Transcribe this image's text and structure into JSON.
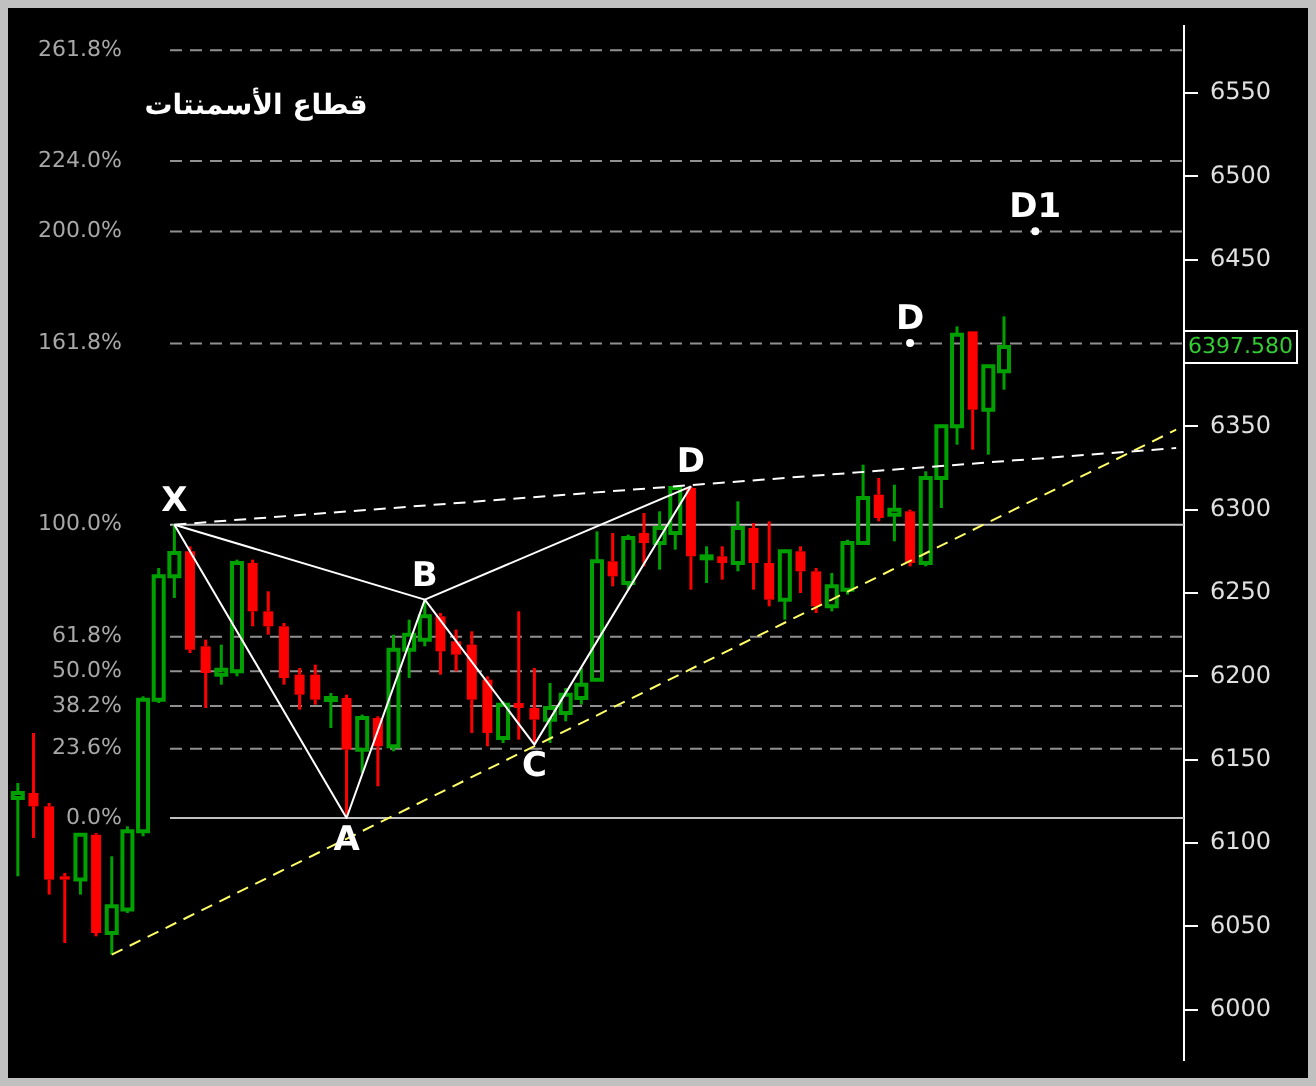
{
  "chart_data": {
    "type": "candlestick",
    "title": "قطاع الأسمنتات",
    "categories": [
      null,
      null,
      null,
      null,
      null,
      null,
      null,
      null,
      null,
      null,
      null,
      null,
      null,
      null,
      null,
      null,
      null,
      null,
      null,
      null,
      null,
      null,
      null,
      null,
      null,
      null,
      null,
      null,
      null,
      null,
      null,
      null,
      null,
      null,
      null,
      null,
      null,
      null,
      null,
      null,
      null,
      null,
      null,
      null,
      null,
      null,
      null,
      null,
      null,
      null,
      null,
      null,
      null,
      null,
      null,
      null,
      null,
      null,
      null,
      null,
      null,
      null,
      null,
      null,
      null,
      null,
      null,
      null,
      null,
      null,
      null,
      null,
      null,
      null,
      null
    ],
    "ohlc": [
      [
        6127,
        6136,
        6080,
        6130
      ],
      [
        6130,
        6166,
        6103,
        6122
      ],
      [
        6122,
        6124,
        6069,
        6078
      ],
      [
        6080,
        6082,
        6040,
        6078
      ],
      [
        6078,
        6105,
        6069,
        6105
      ],
      [
        6105,
        6106,
        6044,
        6046
      ],
      [
        6046,
        6092,
        6033,
        6062
      ],
      [
        6060,
        6110,
        6058,
        6107
      ],
      [
        6107,
        6188,
        6104,
        6186
      ],
      [
        6186,
        6265,
        6184,
        6260
      ],
      [
        6260,
        6291,
        6247,
        6274
      ],
      [
        6275,
        6278,
        6214,
        6216
      ],
      [
        6218,
        6222,
        6181,
        6202
      ],
      [
        6201,
        6219,
        6195,
        6204
      ],
      [
        6203,
        6270,
        6200,
        6268
      ],
      [
        6268,
        6270,
        6230,
        6239
      ],
      [
        6239,
        6251,
        6225,
        6230
      ],
      [
        6230,
        6232,
        6195,
        6199
      ],
      [
        6201,
        6205,
        6180,
        6189
      ],
      [
        6201,
        6207,
        6183,
        6186
      ],
      [
        6186,
        6190,
        6169,
        6187
      ],
      [
        6187,
        6189,
        6115,
        6156
      ],
      [
        6156,
        6177,
        6142,
        6175
      ],
      [
        6175,
        6176,
        6134,
        6158
      ],
      [
        6158,
        6225,
        6155,
        6216
      ],
      [
        6216,
        6234,
        6199,
        6225
      ],
      [
        6222,
        6246,
        6218,
        6236
      ],
      [
        6236,
        6238,
        6201,
        6215
      ],
      [
        6221,
        6228,
        6203,
        6213
      ],
      [
        6219,
        6227,
        6166,
        6186
      ],
      [
        6198,
        6200,
        6158,
        6166
      ],
      [
        6163,
        6185,
        6160,
        6183
      ],
      [
        6184,
        6239,
        6162,
        6181
      ],
      [
        6181,
        6205,
        6159,
        6174
      ],
      [
        6174,
        6196,
        6160,
        6181
      ],
      [
        6178,
        6193,
        6173,
        6189
      ],
      [
        6187,
        6205,
        6183,
        6195
      ],
      [
        6198,
        6287,
        6197,
        6269
      ],
      [
        6269,
        6286,
        6254,
        6260
      ],
      [
        6256,
        6285,
        6252,
        6283
      ],
      [
        6286,
        6298,
        6266,
        6280
      ],
      [
        6280,
        6299,
        6264,
        6289
      ],
      [
        6286,
        6314,
        6276,
        6313
      ],
      [
        6313,
        6314,
        6252,
        6272
      ],
      [
        6271,
        6278,
        6256,
        6272
      ],
      [
        6272,
        6278,
        6258,
        6268
      ],
      [
        6268,
        6305,
        6263,
        6289
      ],
      [
        6289,
        6292,
        6252,
        6268
      ],
      [
        6268,
        6293,
        6242,
        6246
      ],
      [
        6246,
        6276,
        6234,
        6275
      ],
      [
        6275,
        6278,
        6250,
        6263
      ],
      [
        6263,
        6265,
        6238,
        6242
      ],
      [
        6242,
        6262,
        6239,
        6254
      ],
      [
        6252,
        6282,
        6249,
        6280
      ],
      [
        6280,
        6327,
        6279,
        6307
      ],
      [
        6309,
        6319,
        6293,
        6295
      ],
      [
        6297,
        6315,
        6281,
        6300
      ],
      [
        6299,
        6300,
        6266,
        6268
      ],
      [
        6268,
        6323,
        6266,
        6319
      ],
      [
        6319,
        6351,
        6301,
        6350
      ],
      [
        6350,
        6410,
        6339,
        6405
      ],
      [
        6407,
        6407,
        6336,
        6360
      ],
      [
        6360,
        6386,
        6333,
        6386
      ],
      [
        6383,
        6416,
        6372,
        6397.58
      ],
      null,
      null,
      null,
      null,
      null,
      null,
      null,
      null,
      null,
      null,
      null
    ],
    "colors": [
      "#00a000",
      "#ff0000",
      "#ff0000",
      "#ff0000",
      "#00a000",
      "#ff0000",
      "#00a000",
      "#00a000",
      "#00a000",
      "#00a000",
      "#00a000",
      "#ff0000",
      "#ff0000",
      "#00a000",
      "#00a000",
      "#ff0000",
      "#ff0000",
      "#ff0000",
      "#ff0000",
      "#ff0000",
      "#00a000",
      "#ff0000",
      "#00a000",
      "#ff0000",
      "#00a000",
      "#00a000",
      "#00a000",
      "#ff0000",
      "#ff0000",
      "#ff0000",
      "#ff0000",
      "#00a000",
      "#ff0000",
      "#ff0000",
      "#00a000",
      "#00a000",
      "#00a000",
      "#00a000",
      "#ff0000",
      "#00a000",
      "#ff0000",
      "#00a000",
      "#00a000",
      "#ff0000",
      "#00a000",
      "#ff0000",
      "#00a000",
      "#ff0000",
      "#ff0000",
      "#00a000",
      "#ff0000",
      "#ff0000",
      "#00a000",
      "#00a000",
      "#00a000",
      "#ff0000",
      "#00a000",
      "#ff0000",
      "#00a000",
      "#00a000",
      "#00a000",
      "#ff0000",
      "#00a000",
      "#00a000",
      null,
      null,
      null,
      null,
      null,
      null,
      null,
      null,
      null,
      null,
      null
    ],
    "series": [
      {
        "type": "line",
        "color": "#ffffff",
        "line_style": "solid",
        "marker": "none",
        "values": [
          null,
          null,
          null,
          null,
          null,
          null,
          null,
          null,
          null,
          null,
          6291,
          null,
          null,
          null,
          null,
          null,
          null,
          null,
          null,
          null,
          null,
          6115,
          null,
          null,
          null,
          null,
          6246,
          null,
          null,
          null,
          null,
          null,
          null,
          6159,
          null,
          null,
          null,
          null,
          null,
          null,
          null,
          null,
          null,
          6314,
          null,
          null,
          null,
          null,
          null,
          null,
          null,
          null,
          null,
          null,
          null,
          null,
          null,
          null,
          null,
          null,
          null,
          null,
          null,
          null,
          null,
          null,
          null,
          null,
          null,
          null,
          null,
          null,
          null,
          null,
          null
        ],
        "value_labels": [
          null,
          null,
          null,
          null,
          null,
          null,
          null,
          null,
          null,
          null,
          "X",
          null,
          null,
          null,
          null,
          null,
          null,
          null,
          null,
          null,
          null,
          "A",
          null,
          null,
          null,
          null,
          "B",
          null,
          null,
          null,
          null,
          null,
          null,
          "C",
          null,
          null,
          null,
          null,
          null,
          null,
          null,
          null,
          null,
          "D",
          null,
          null,
          null,
          null,
          null,
          null,
          null,
          null,
          null,
          null,
          null,
          null,
          null,
          null,
          null,
          null,
          null,
          null,
          null,
          null,
          null,
          null,
          null,
          null,
          null,
          null,
          null,
          null,
          null,
          null,
          null
        ]
      },
      {
        "type": "line",
        "color": "#ffffff",
        "line_style": "solid",
        "marker": "none",
        "values": [
          null,
          null,
          null,
          null,
          null,
          null,
          null,
          null,
          null,
          null,
          6291,
          null,
          null,
          null,
          null,
          null,
          null,
          null,
          null,
          null,
          null,
          null,
          null,
          null,
          null,
          null,
          6246,
          null,
          null,
          null,
          null,
          null,
          null,
          null,
          null,
          null,
          null,
          null,
          null,
          null,
          null,
          null,
          null,
          6314,
          null,
          null,
          null,
          null,
          null,
          null,
          null,
          null,
          null,
          null,
          null,
          null,
          null,
          null,
          null,
          null,
          null,
          null,
          null,
          null,
          null,
          null,
          null,
          null,
          null,
          null,
          null,
          null,
          null,
          null,
          null
        ]
      },
      {
        "type": "scatter",
        "color": "#ffffff",
        "marker": "circle",
        "values": [
          null,
          null,
          null,
          null,
          null,
          null,
          null,
          null,
          null,
          null,
          null,
          null,
          null,
          null,
          null,
          null,
          null,
          null,
          null,
          null,
          null,
          null,
          null,
          null,
          null,
          null,
          null,
          null,
          null,
          null,
          null,
          null,
          null,
          null,
          null,
          null,
          null,
          null,
          null,
          null,
          null,
          null,
          null,
          null,
          null,
          null,
          null,
          null,
          null,
          null,
          null,
          null,
          null,
          null,
          null,
          null,
          null,
          6400,
          null,
          null,
          null,
          null,
          null,
          null,
          null,
          6467,
          null,
          null,
          null,
          null,
          null,
          null,
          null,
          null,
          null
        ],
        "value_labels": [
          null,
          null,
          null,
          null,
          null,
          null,
          null,
          null,
          null,
          null,
          null,
          null,
          null,
          null,
          null,
          null,
          null,
          null,
          null,
          null,
          null,
          null,
          null,
          null,
          null,
          null,
          null,
          null,
          null,
          null,
          null,
          null,
          null,
          null,
          null,
          null,
          null,
          null,
          null,
          null,
          null,
          null,
          null,
          null,
          null,
          null,
          null,
          null,
          null,
          null,
          null,
          null,
          null,
          null,
          null,
          null,
          null,
          "D",
          null,
          null,
          null,
          null,
          null,
          null,
          null,
          "D1",
          null,
          null,
          null,
          null,
          null,
          null,
          null,
          null,
          null
        ]
      },
      {
        "type": "line",
        "color": "#ffffff",
        "line_style": "dashed",
        "marker": "none",
        "values": [
          null,
          null,
          null,
          null,
          null,
          null,
          null,
          null,
          null,
          null,
          6291,
          null,
          null,
          null,
          null,
          null,
          null,
          null,
          null,
          null,
          null,
          null,
          null,
          null,
          null,
          null,
          null,
          null,
          null,
          null,
          null,
          null,
          null,
          null,
          null,
          null,
          null,
          null,
          null,
          null,
          null,
          null,
          null,
          null,
          null,
          null,
          null,
          null,
          null,
          null,
          null,
          null,
          null,
          null,
          null,
          null,
          null,
          null,
          null,
          null,
          null,
          null,
          null,
          null,
          null,
          null,
          null,
          null,
          null,
          null,
          null,
          null,
          null,
          null,
          6337
        ]
      },
      {
        "type": "line",
        "color": "#ffff66",
        "line_style": "dashed",
        "marker": "none",
        "values": [
          null,
          null,
          null,
          null,
          null,
          null,
          6033,
          null,
          null,
          null,
          null,
          null,
          null,
          null,
          null,
          null,
          null,
          null,
          null,
          null,
          null,
          null,
          null,
          null,
          null,
          null,
          null,
          null,
          null,
          null,
          null,
          null,
          null,
          null,
          null,
          null,
          null,
          null,
          null,
          null,
          null,
          null,
          null,
          null,
          null,
          null,
          null,
          null,
          null,
          null,
          null,
          null,
          null,
          null,
          null,
          null,
          null,
          null,
          null,
          null,
          null,
          null,
          null,
          null,
          null,
          null,
          null,
          null,
          null,
          null,
          null,
          null,
          null,
          null,
          6348
        ]
      }
    ],
    "ref_lines": [
      {
        "axis": "y2",
        "value": 0,
        "color": "#c0c0c0",
        "line_style": "solid"
      },
      {
        "axis": "y2",
        "value": 23.6,
        "color": "#909090",
        "line_style": "dashed"
      },
      {
        "axis": "y2",
        "value": 38.2,
        "color": "#909090",
        "line_style": "dashed"
      },
      {
        "axis": "y2",
        "value": 50,
        "color": "#909090",
        "line_style": "dashed"
      },
      {
        "axis": "y2",
        "value": 61.8,
        "color": "#909090",
        "line_style": "dashed"
      },
      {
        "axis": "y2",
        "value": 100,
        "color": "#c0c0c0",
        "line_style": "solid"
      },
      {
        "axis": "y2",
        "value": 161.8,
        "color": "#909090",
        "line_style": "dashed"
      },
      {
        "axis": "y2",
        "value": 200,
        "color": "#909090",
        "line_style": "dashed"
      },
      {
        "axis": "y2",
        "value": 224,
        "color": "#909090",
        "line_style": "dashed"
      },
      {
        "axis": "y2",
        "value": 261.8,
        "color": "#909090",
        "line_style": "dashed"
      }
    ],
    "ylim": [
      5970,
      6590
    ],
    "yticks": [
      6000,
      6050,
      6100,
      6150,
      6200,
      6250,
      6300,
      6350,
      {
        "value": 6397.58,
        "label": "6397.580"
      },
      {
        "value": 6400,
        "label": null
      },
      6450,
      6500,
      6550
    ],
    "y2lim": [
      -82.39,
      269.89
    ],
    "y2ticks": [
      {
        "value": 0,
        "label": "0.0%"
      },
      {
        "value": 23.6,
        "label": "23.6%"
      },
      {
        "value": 38.2,
        "label": "38.2%"
      },
      {
        "value": 50,
        "label": "50.0%"
      },
      {
        "value": 61.8,
        "label": "61.8%"
      },
      {
        "value": 100,
        "label": "100.0%"
      },
      {
        "value": 161.8,
        "label": "161.8%"
      },
      {
        "value": 200,
        "label": "200.0%"
      },
      {
        "value": 224,
        "label": "224.0%"
      },
      {
        "value": 261.8,
        "label": "261.8%"
      }
    ],
    "grid": false,
    "legend": false,
    "tick_labels": "y"
  }
}
